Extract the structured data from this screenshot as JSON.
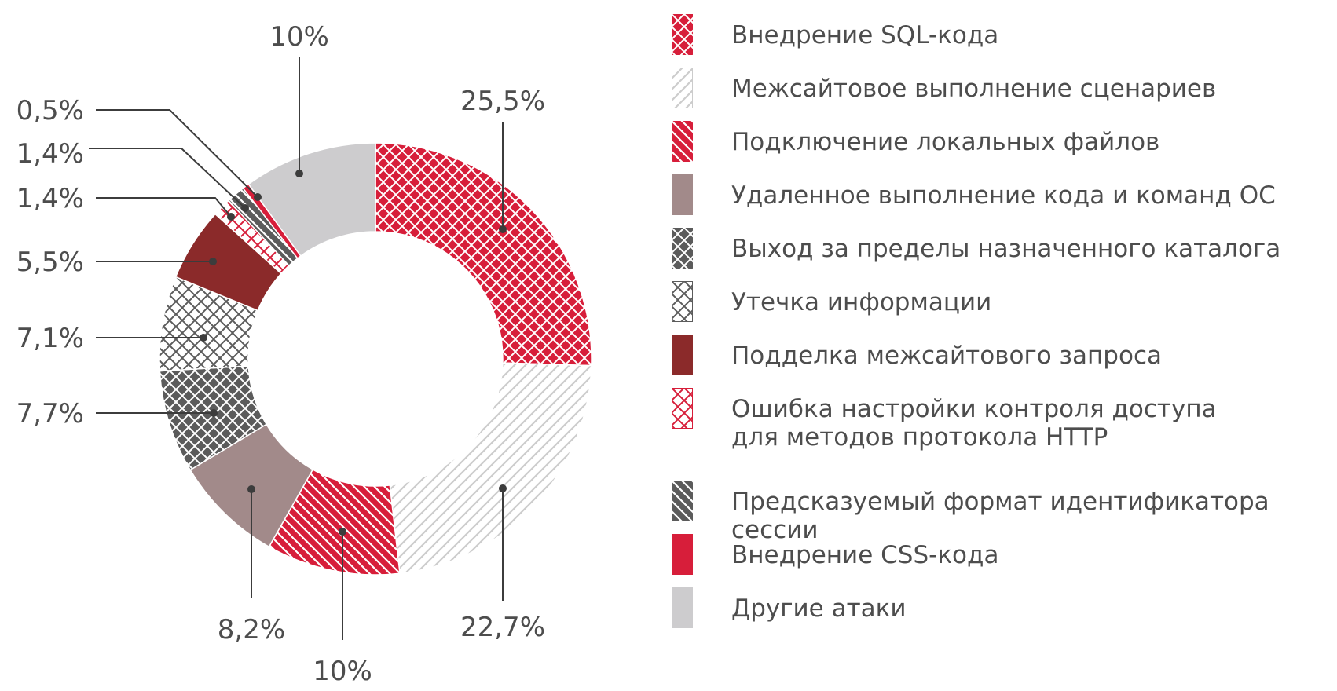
{
  "chart_data": {
    "type": "pie",
    "donut": true,
    "legend": "right",
    "slices": [
      {
        "label": "Внедрение SQL-кода",
        "value": 25.5,
        "value_label": "25,5%",
        "color": "#d71e3a",
        "pattern": "crosshatch",
        "pattern_color": "#ffffff"
      },
      {
        "label": "Межсайтовое выполнение сценариев",
        "value": 22.7,
        "value_label": "22,7%",
        "color": "#ffffff",
        "pattern": "diagonal-up",
        "pattern_color": "#cccccc"
      },
      {
        "label": "Подключение локальных файлов",
        "value": 10,
        "value_label": "10%",
        "color": "#d71e3a",
        "pattern": "diagonal-down",
        "pattern_color": "#ffffff"
      },
      {
        "label": "Удаленное выполнение кода и команд ОС",
        "value": 8.2,
        "value_label": "8,2%",
        "color": "#a28a8a",
        "pattern": "none",
        "pattern_color": ""
      },
      {
        "label": "Выход за пределы назначенного каталога",
        "value": 7.7,
        "value_label": "7,7%",
        "color": "#5b5b5b",
        "pattern": "crosshatch",
        "pattern_color": "#ffffff"
      },
      {
        "label": "Утечка информации",
        "value": 7.1,
        "value_label": "7,1%",
        "color": "#ffffff",
        "pattern": "crosshatch",
        "pattern_color": "#5b5b5b"
      },
      {
        "label": "Подделка межсайтового запроса",
        "value": 5.5,
        "value_label": "5,5%",
        "color": "#8b2a2a",
        "pattern": "none",
        "pattern_color": ""
      },
      {
        "label": "Ошибка настройки контроля доступа\nдля методов протокола HTTP",
        "value": 1.4,
        "value_label": "1,4%",
        "color": "#ffffff",
        "pattern": "crosshatch",
        "pattern_color": "#d71e3a"
      },
      {
        "label": "Предсказуемый формат идентификатора сессии",
        "value": 1.4,
        "value_label": "1,4%",
        "color": "#5b5b5b",
        "pattern": "diagonal-down",
        "pattern_color": "#ffffff"
      },
      {
        "label": "Внедрение CSS-кода",
        "value": 0.5,
        "value_label": "0,5%",
        "color": "#d71e3a",
        "pattern": "none",
        "pattern_color": ""
      },
      {
        "label": "Другие атаки",
        "value": 10,
        "value_label": "10%",
        "color": "#cdccce",
        "pattern": "none",
        "pattern_color": ""
      }
    ]
  }
}
